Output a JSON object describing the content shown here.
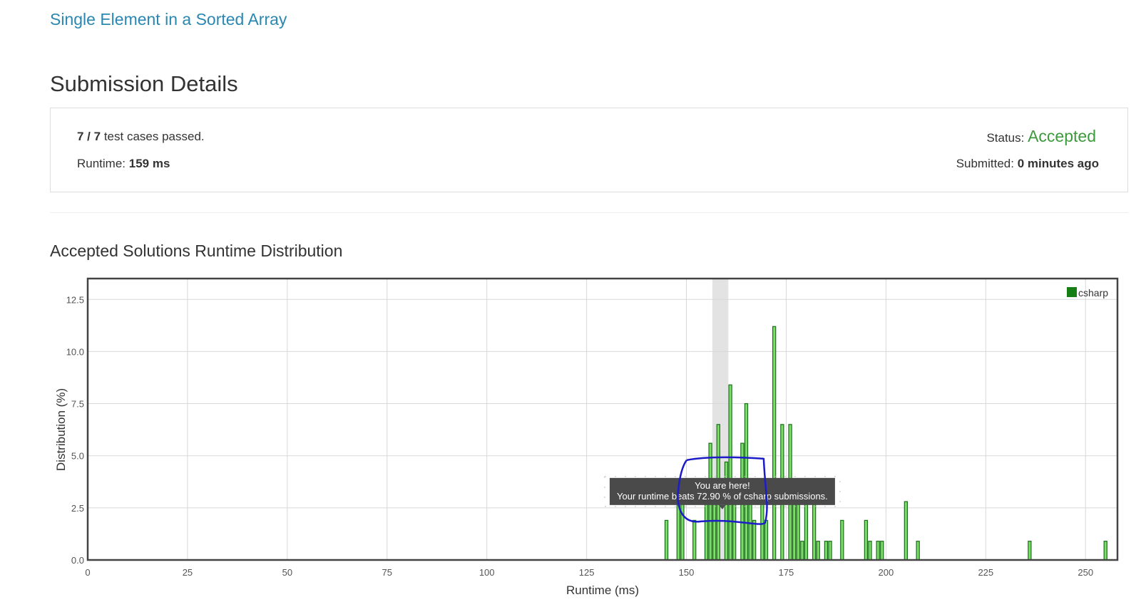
{
  "problem": {
    "title": "Single Element in a Sorted Array"
  },
  "page": {
    "title": "Submission Details"
  },
  "details": {
    "cases_count": "7 / 7",
    "cases_text": "test cases passed.",
    "runtime_label": "Runtime:",
    "runtime_value": "159 ms",
    "status_label": "Status:",
    "status_value": "Accepted",
    "submitted_label": "Submitted:",
    "submitted_value": "0 minutes ago"
  },
  "colors": {
    "accent_link": "#2a87b1",
    "accepted": "#3d9a3d",
    "bar_fill": "#7fdd6b",
    "bar_stroke": "#1a6e1a",
    "legend_swatch": "#157f15",
    "highlight_band": "#e3e3e3",
    "tooltip_bg": "#4a4a4a",
    "scribble": "#1c1cc8"
  },
  "chart_data": {
    "type": "bar",
    "title": "Accepted Solutions Runtime Distribution",
    "xlabel": "Runtime (ms)",
    "ylabel": "Distribution (%)",
    "xlim": [
      0,
      258
    ],
    "ylim": [
      0,
      13.5
    ],
    "xticks": [
      0,
      25,
      50,
      75,
      100,
      125,
      150,
      175,
      200,
      225,
      250
    ],
    "xtick_labels": [
      "0",
      "25",
      "50",
      "75",
      "100",
      "125",
      "150",
      "175",
      "200",
      "225",
      "250"
    ],
    "yticks": [
      0,
      2.5,
      5,
      7.5,
      10,
      12.5
    ],
    "ytick_labels": [
      "0.0",
      "2.5",
      "5.0",
      "7.5",
      "10.0",
      "12.5"
    ],
    "grid": true,
    "legend_position": "top-right",
    "bar_width": 1,
    "series": [
      {
        "name": "csharp",
        "x": [
          145,
          148,
          149,
          152,
          155,
          156,
          157,
          158,
          160,
          161,
          162,
          164,
          165,
          166,
          167,
          169,
          170,
          172,
          174,
          176,
          177,
          178,
          179,
          180,
          182,
          183,
          185,
          186,
          189,
          195,
          196,
          198,
          199,
          205,
          208,
          236,
          255
        ],
        "values": [
          1.9,
          2.8,
          2.8,
          1.9,
          2.8,
          5.6,
          2.8,
          6.5,
          4.7,
          8.4,
          3.7,
          5.6,
          7.5,
          2.8,
          1.9,
          2.8,
          1.9,
          11.2,
          6.5,
          6.5,
          3.7,
          3.7,
          0.9,
          2.8,
          3.7,
          0.9,
          0.9,
          0.9,
          1.9,
          1.9,
          0.9,
          0.9,
          0.9,
          2.8,
          0.9,
          0.9,
          0.9
        ]
      }
    ],
    "highlight": {
      "x_from": 156.5,
      "x_to": 160.5
    },
    "tooltip": {
      "line1": "You are here!",
      "line2": "Your runtime beats 72.90 % of csharp submissions.",
      "anchor_x": 159,
      "anchor_y": 2.5
    },
    "annotation": "hand-drawn blue outline around tooltip"
  }
}
